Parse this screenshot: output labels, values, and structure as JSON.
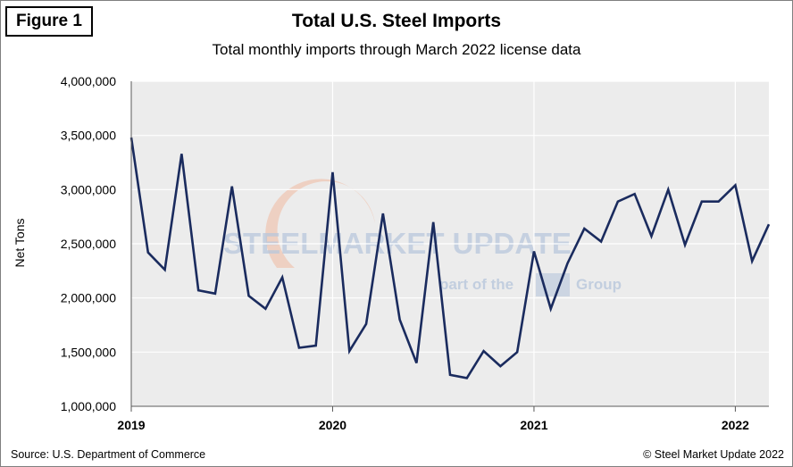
{
  "figure_label": "Figure 1",
  "source": "Source: U.S. Department of Commerce",
  "copyright": "© Steel Market Update 2022",
  "watermark": {
    "text": "STEELMARKET UPDATE",
    "tagline_part1": "part of the",
    "tagline_part2": "Group",
    "colors": {
      "text": "#b8c7dc",
      "swoosh": "#f0b9a0"
    }
  },
  "colors": {
    "line": "#1a2b5e",
    "plot_bg": "#ececec",
    "grid": "#ffffff",
    "axis": "#595959"
  },
  "chart_data": {
    "type": "line",
    "title": "Total U.S. Steel Imports",
    "subtitle": "Total monthly imports through March 2022 license data",
    "xlabel": "",
    "ylabel": "Net Tons",
    "ylim": [
      1000000,
      4000000
    ],
    "yticks": [
      1000000,
      1500000,
      2000000,
      2500000,
      3000000,
      3500000,
      4000000
    ],
    "ytick_labels": [
      "1,000,000",
      "1,500,000",
      "2,000,000",
      "2,500,000",
      "3,000,000",
      "3,500,000",
      "4,000,000"
    ],
    "xticks": [
      "2019",
      "2020",
      "2021",
      "2022"
    ],
    "xlim": [
      "2019-01",
      "2022-03"
    ],
    "grid": true,
    "legend": "none",
    "series": [
      {
        "x": [
          "2019-01",
          "2019-02",
          "2019-03",
          "2019-04",
          "2019-05",
          "2019-06",
          "2019-07",
          "2019-08",
          "2019-09",
          "2019-10",
          "2019-11",
          "2019-12",
          "2020-01",
          "2020-02",
          "2020-03",
          "2020-04",
          "2020-05",
          "2020-06",
          "2020-07",
          "2020-08",
          "2020-09",
          "2020-10",
          "2020-11",
          "2020-12",
          "2021-01",
          "2021-02",
          "2021-03",
          "2021-04",
          "2021-05",
          "2021-06",
          "2021-07",
          "2021-08",
          "2021-09",
          "2021-10",
          "2021-11",
          "2021-12",
          "2022-01",
          "2022-02",
          "2022-03"
        ],
        "values": [
          3480000,
          2420000,
          2260000,
          3330000,
          2070000,
          2040000,
          3030000,
          2020000,
          1900000,
          2190000,
          1540000,
          1560000,
          3160000,
          1510000,
          1760000,
          2780000,
          1800000,
          1400000,
          2700000,
          1290000,
          1260000,
          1510000,
          1370000,
          1500000,
          2430000,
          1900000,
          2320000,
          2640000,
          2520000,
          2890000,
          2960000,
          2570000,
          3000000,
          2490000,
          2890000,
          2890000,
          3040000,
          2340000,
          2680000
        ]
      }
    ]
  }
}
